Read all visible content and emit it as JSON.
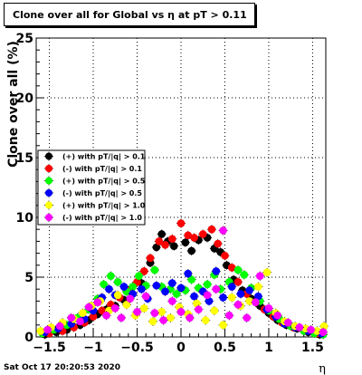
{
  "title": "Clone  over all for Global vs   η at pT > 0.11",
  "timestamp": "Sat Oct 17 20:20:53 2020",
  "chart_data": {
    "type": "scatter",
    "title": "Clone  over all for Global vs   η at pT > 0.11",
    "xlabel": "η",
    "ylabel": "Clone  over all (%)",
    "xlim": [
      -1.65,
      1.65
    ],
    "ylim": [
      0,
      25
    ],
    "x_ticks": [
      -1.5,
      -1,
      -0.5,
      0,
      0.5,
      1,
      1.5
    ],
    "x_tick_labels": [
      "−1.5",
      "−1",
      "−0.5",
      "0",
      "0.5",
      "1",
      "1.5"
    ],
    "y_ticks": [
      0,
      5,
      10,
      15,
      20,
      25
    ],
    "y_tick_labels": [
      "0",
      "5",
      "10",
      "15",
      "20",
      "25"
    ],
    "grid": true,
    "legend_position": "left-middle",
    "series": [
      {
        "name": "(+) with pT/|q| > 0.1",
        "color": "#000000",
        "points": [
          [
            -1.55,
            0.2
          ],
          [
            -1.42,
            0.4
          ],
          [
            -1.3,
            0.6
          ],
          [
            -1.15,
            1.0
          ],
          [
            -1.05,
            1.4
          ],
          [
            -0.95,
            1.9
          ],
          [
            -0.85,
            2.3
          ],
          [
            -0.75,
            2.6
          ],
          [
            -0.65,
            3.1
          ],
          [
            -0.55,
            3.6
          ],
          [
            -0.45,
            4.5
          ],
          [
            -0.35,
            6.2
          ],
          [
            -0.28,
            7.5
          ],
          [
            -0.22,
            8.6
          ],
          [
            -0.15,
            8.0
          ],
          [
            -0.08,
            7.6
          ],
          [
            0.05,
            7.9
          ],
          [
            0.12,
            7.2
          ],
          [
            0.2,
            8.1
          ],
          [
            0.3,
            8.3
          ],
          [
            0.38,
            7.4
          ],
          [
            0.45,
            7.1
          ],
          [
            0.52,
            6.0
          ],
          [
            0.6,
            4.8
          ],
          [
            0.7,
            3.9
          ],
          [
            0.8,
            3.2
          ],
          [
            0.9,
            2.6
          ],
          [
            1.0,
            2.0
          ],
          [
            1.1,
            1.4
          ],
          [
            1.2,
            1.0
          ],
          [
            1.32,
            0.7
          ],
          [
            1.45,
            0.4
          ],
          [
            1.58,
            0.2
          ]
        ]
      },
      {
        "name": "(-) with pT/|q| > 0.1",
        "color": "#ff0000",
        "points": [
          [
            -1.5,
            0.3
          ],
          [
            -1.35,
            0.5
          ],
          [
            -1.22,
            0.8
          ],
          [
            -1.1,
            1.2
          ],
          [
            -1.0,
            1.7
          ],
          [
            -0.9,
            2.2
          ],
          [
            -0.8,
            2.7
          ],
          [
            -0.7,
            3.3
          ],
          [
            -0.6,
            3.9
          ],
          [
            -0.5,
            4.6
          ],
          [
            -0.42,
            5.5
          ],
          [
            -0.35,
            6.6
          ],
          [
            -0.25,
            8.0
          ],
          [
            -0.18,
            7.7
          ],
          [
            -0.1,
            8.2
          ],
          [
            0.0,
            9.5
          ],
          [
            0.08,
            8.5
          ],
          [
            0.15,
            8.3
          ],
          [
            0.25,
            8.6
          ],
          [
            0.35,
            9.0
          ],
          [
            0.42,
            7.8
          ],
          [
            0.5,
            6.8
          ],
          [
            0.58,
            5.8
          ],
          [
            0.65,
            4.6
          ],
          [
            0.75,
            3.6
          ],
          [
            0.85,
            2.9
          ],
          [
            0.95,
            2.3
          ],
          [
            1.05,
            1.7
          ],
          [
            1.15,
            1.2
          ],
          [
            1.28,
            0.8
          ],
          [
            1.4,
            0.5
          ],
          [
            1.55,
            0.3
          ]
        ]
      },
      {
        "name": "(+) with pT/|q| > 0.5",
        "color": "#00ff00",
        "points": [
          [
            -1.58,
            0.3
          ],
          [
            -1.45,
            0.6
          ],
          [
            -1.3,
            1.0
          ],
          [
            -1.18,
            1.6
          ],
          [
            -1.05,
            2.3
          ],
          [
            -0.95,
            3.2
          ],
          [
            -0.88,
            4.4
          ],
          [
            -0.8,
            5.1
          ],
          [
            -0.72,
            4.6
          ],
          [
            -0.62,
            3.8
          ],
          [
            -0.55,
            4.2
          ],
          [
            -0.48,
            5.1
          ],
          [
            -0.4,
            4.3
          ],
          [
            -0.3,
            5.6
          ],
          [
            -0.22,
            4.2
          ],
          [
            -0.12,
            4.0
          ],
          [
            -0.05,
            3.6
          ],
          [
            0.05,
            3.9
          ],
          [
            0.12,
            4.8
          ],
          [
            0.2,
            4.1
          ],
          [
            0.3,
            4.4
          ],
          [
            0.38,
            5.2
          ],
          [
            0.45,
            4.0
          ],
          [
            0.55,
            4.6
          ],
          [
            0.65,
            5.6
          ],
          [
            0.72,
            5.2
          ],
          [
            0.8,
            4.1
          ],
          [
            0.9,
            3.0
          ],
          [
            1.0,
            2.2
          ],
          [
            1.12,
            1.5
          ],
          [
            1.25,
            0.9
          ],
          [
            1.4,
            0.5
          ],
          [
            1.52,
            0.3
          ],
          [
            1.62,
            0.2
          ]
        ]
      },
      {
        "name": "(-) with pT/|q| > 0.5",
        "color": "#0000ff",
        "points": [
          [
            -1.55,
            0.4
          ],
          [
            -1.4,
            0.7
          ],
          [
            -1.25,
            1.1
          ],
          [
            -1.1,
            1.5
          ],
          [
            -1.0,
            2.2
          ],
          [
            -0.9,
            3.3
          ],
          [
            -0.82,
            4.0
          ],
          [
            -0.75,
            3.5
          ],
          [
            -0.65,
            4.2
          ],
          [
            -0.55,
            3.6
          ],
          [
            -0.45,
            4.0
          ],
          [
            -0.38,
            3.2
          ],
          [
            -0.28,
            4.3
          ],
          [
            -0.18,
            3.8
          ],
          [
            -0.1,
            4.5
          ],
          [
            0.0,
            4.1
          ],
          [
            0.08,
            5.3
          ],
          [
            0.15,
            3.4
          ],
          [
            0.25,
            3.8
          ],
          [
            0.32,
            3.0
          ],
          [
            0.4,
            5.5
          ],
          [
            0.48,
            3.3
          ],
          [
            0.58,
            4.2
          ],
          [
            0.68,
            3.6
          ],
          [
            0.78,
            3.9
          ],
          [
            0.88,
            3.4
          ],
          [
            0.98,
            2.3
          ],
          [
            1.08,
            1.7
          ],
          [
            1.18,
            1.1
          ],
          [
            1.3,
            0.8
          ],
          [
            1.45,
            0.5
          ],
          [
            1.6,
            0.3
          ]
        ]
      },
      {
        "name": "(+) with pT/|q| > 1.0",
        "color": "#ffff00",
        "points": [
          [
            -1.6,
            0.5
          ],
          [
            -1.48,
            0.8
          ],
          [
            -1.35,
            1.2
          ],
          [
            -1.22,
            1.5
          ],
          [
            -1.12,
            2.0
          ],
          [
            -1.02,
            2.6
          ],
          [
            -0.92,
            3.0
          ],
          [
            -0.82,
            2.2
          ],
          [
            -0.72,
            3.5
          ],
          [
            -0.62,
            2.7
          ],
          [
            -0.52,
            1.8
          ],
          [
            -0.42,
            2.4
          ],
          [
            -0.32,
            1.3
          ],
          [
            -0.22,
            2.1
          ],
          [
            -0.12,
            1.6
          ],
          [
            -0.02,
            2.5
          ],
          [
            0.08,
            1.9
          ],
          [
            0.18,
            2.8
          ],
          [
            0.28,
            1.4
          ],
          [
            0.38,
            2.2
          ],
          [
            0.48,
            1.0
          ],
          [
            0.58,
            3.3
          ],
          [
            0.68,
            2.6
          ],
          [
            0.78,
            3.0
          ],
          [
            0.88,
            4.2
          ],
          [
            0.98,
            5.4
          ],
          [
            1.08,
            2.0
          ],
          [
            1.18,
            1.3
          ],
          [
            1.3,
            0.9
          ],
          [
            1.42,
            0.7
          ],
          [
            1.55,
            0.5
          ],
          [
            1.63,
            0.9
          ]
        ]
      },
      {
        "name": "(-) with pT/|q| > 1.0",
        "color": "#ff00ff",
        "points": [
          [
            -1.52,
            0.6
          ],
          [
            -1.38,
            0.9
          ],
          [
            -1.25,
            1.6
          ],
          [
            -1.15,
            1.3
          ],
          [
            -1.05,
            2.5
          ],
          [
            -0.95,
            2.9
          ],
          [
            -0.85,
            1.8
          ],
          [
            -0.75,
            2.4
          ],
          [
            -0.68,
            1.6
          ],
          [
            -0.58,
            3.2
          ],
          [
            -0.5,
            2.1
          ],
          [
            -0.4,
            3.4
          ],
          [
            -0.3,
            2.0
          ],
          [
            -0.2,
            1.4
          ],
          [
            -0.1,
            3.0
          ],
          [
            0.0,
            2.1
          ],
          [
            0.1,
            1.6
          ],
          [
            0.2,
            2.3
          ],
          [
            0.3,
            3.5
          ],
          [
            0.4,
            4.0
          ],
          [
            0.48,
            8.9
          ],
          [
            0.55,
            1.8
          ],
          [
            0.65,
            2.7
          ],
          [
            0.75,
            1.6
          ],
          [
            0.85,
            2.9
          ],
          [
            0.9,
            5.1
          ],
          [
            1.0,
            2.4
          ],
          [
            1.1,
            1.8
          ],
          [
            1.22,
            1.2
          ],
          [
            1.35,
            0.8
          ],
          [
            1.48,
            0.6
          ],
          [
            1.62,
            0.4
          ]
        ]
      }
    ]
  }
}
